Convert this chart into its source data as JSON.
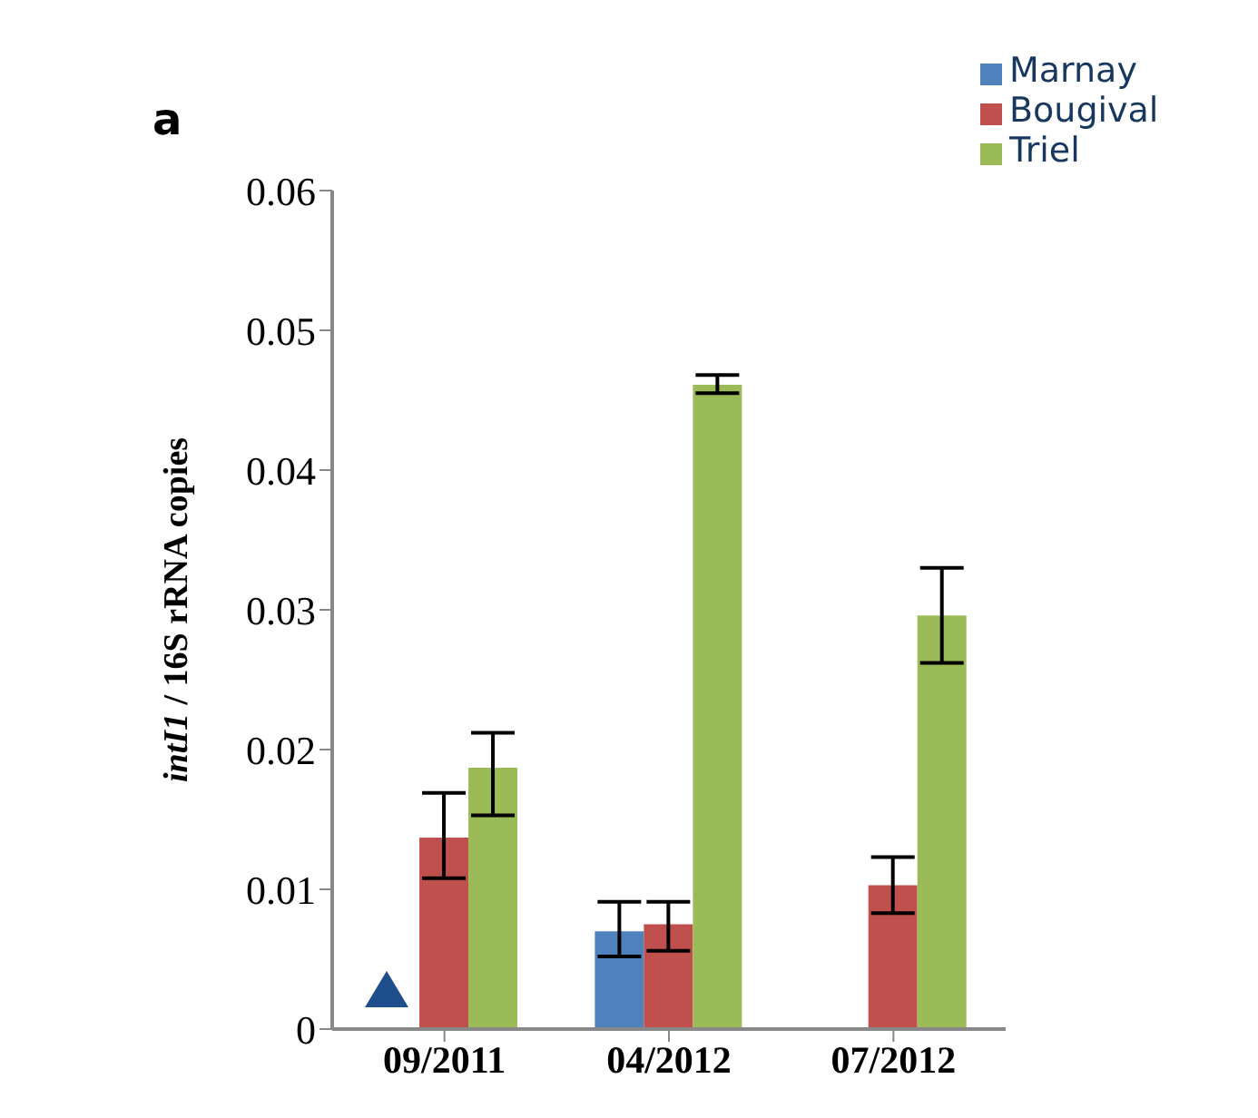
{
  "chart_data": {
    "type": "bar",
    "title": "a",
    "ylabel": "intI1 / 16S rRNA copies",
    "categories": [
      "09/2011",
      "04/2012",
      "07/2012"
    ],
    "series": [
      {
        "name": "Marnay",
        "color": "#4f81bd",
        "values": [
          0,
          0.007,
          0
        ],
        "errors": [
          null,
          [
            0.0052,
            0.0091
          ],
          null
        ]
      },
      {
        "name": "Bougival",
        "color": "#c0504d",
        "values": [
          0.0137,
          0.0075,
          0.0103
        ],
        "errors": [
          [
            0.0108,
            0.0169
          ],
          [
            0.0056,
            0.0091
          ],
          [
            0.0083,
            0.0123
          ]
        ]
      },
      {
        "name": "Triel",
        "color": "#9bbb59",
        "values": [
          0.0187,
          0.0461,
          0.0296
        ],
        "errors": [
          [
            0.0153,
            0.0212
          ],
          [
            0.0455,
            0.0468
          ],
          [
            0.0262,
            0.033
          ]
        ]
      }
    ],
    "ylim": [
      0,
      0.06
    ],
    "yticks": [
      0,
      0.01,
      0.02,
      0.03,
      0.04,
      0.05,
      0.06
    ],
    "grid": false,
    "legend": "top right"
  }
}
